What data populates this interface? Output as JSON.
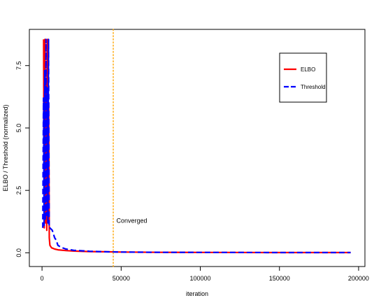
{
  "chart_data": {
    "type": "line",
    "title": "",
    "xlabel": "iteration",
    "ylabel": "ELBO / Threshold (normalized)",
    "xlim": [
      -8000,
      204000
    ],
    "ylim": [
      -0.55,
      8.95
    ],
    "xticks": [
      0,
      50000,
      100000,
      150000,
      200000
    ],
    "xtick_labels": [
      "0",
      "50000",
      "100000",
      "150000",
      "200000"
    ],
    "yticks": [
      0.0,
      2.5,
      5.0,
      7.5
    ],
    "ytick_labels": [
      "0.0",
      "2.5",
      "5.0",
      "7.5"
    ],
    "grid": false,
    "legend_position": "top-right",
    "legend": [
      {
        "label": "ELBO",
        "color": "#ff0000",
        "dash": "solid"
      },
      {
        "label": "Threshold",
        "color": "#0000ff",
        "dash": "dashed"
      }
    ],
    "series": [
      {
        "name": "ELBO",
        "color": "#ff0000",
        "dash": "solid",
        "x": [
          1000,
          1400,
          1800,
          2200,
          2600,
          3000,
          3400,
          3800,
          4200,
          4600,
          5000,
          6000,
          8000,
          10000,
          15000,
          20000,
          30000,
          40000,
          50000,
          75000,
          100000,
          150000,
          195000
        ],
        "y": [
          8.55,
          1.0,
          8.55,
          1.2,
          7.0,
          0.9,
          8.55,
          1.4,
          6.0,
          0.6,
          0.3,
          0.2,
          0.15,
          0.12,
          0.09,
          0.07,
          0.05,
          0.04,
          0.03,
          0.02,
          0.015,
          0.01,
          0.01
        ]
      },
      {
        "name": "Threshold",
        "color": "#0000ff",
        "dash": "dashed",
        "x": [
          500,
          900,
          1300,
          1700,
          2100,
          2500,
          2900,
          3300,
          3700,
          4100,
          4500,
          5000,
          6500,
          8000,
          9000,
          10000,
          12000,
          15000,
          20000,
          30000,
          40000,
          50000,
          75000,
          100000,
          150000,
          195000
        ],
        "y": [
          1.0,
          6.2,
          1.1,
          7.3,
          1.3,
          8.55,
          1.5,
          6.6,
          1.2,
          8.55,
          1.0,
          1.0,
          0.9,
          0.6,
          0.5,
          0.3,
          0.22,
          0.15,
          0.1,
          0.06,
          0.04,
          0.03,
          0.02,
          0.015,
          0.01,
          0.01
        ]
      }
    ],
    "annotations": [
      {
        "type": "vline",
        "x": 45000,
        "color": "#ffa500",
        "dash": "dotted"
      },
      {
        "type": "text",
        "x": 47000,
        "y": 1.2,
        "text": "Converged"
      }
    ]
  }
}
